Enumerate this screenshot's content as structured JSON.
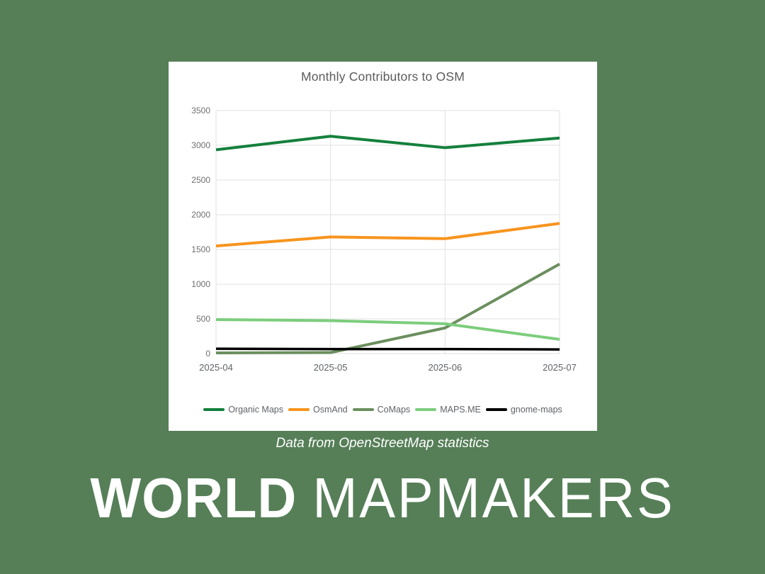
{
  "theme": {
    "background": "#567f58",
    "card_background": "#ffffff",
    "grid_color": "#e2e2e2",
    "axis_text_color": "#6f6f6f",
    "xaxis_text_color": "#5f6368",
    "title_color": "#5b5b5b",
    "caption_color": "#ffffff",
    "wordmark_color": "#ffffff"
  },
  "chart_data": {
    "type": "line",
    "title": "Monthly Contributors to OSM",
    "xlabel": "",
    "ylabel": "",
    "categories": [
      "2025-04",
      "2025-05",
      "2025-06",
      "2025-07"
    ],
    "series": [
      {
        "name": "Organic Maps",
        "color": "#14803c",
        "width": 4,
        "values": [
          2935,
          3130,
          2965,
          3105
        ]
      },
      {
        "name": "OsmAnd",
        "color": "#f7941e",
        "width": 4,
        "values": [
          1550,
          1680,
          1655,
          1875
        ]
      },
      {
        "name": "CoMaps",
        "color": "#6b8f5e",
        "width": 4,
        "values": [
          10,
          15,
          370,
          1290
        ]
      },
      {
        "name": "MAPS.ME",
        "color": "#7ccd7c",
        "width": 4,
        "values": [
          490,
          475,
          430,
          205
        ]
      },
      {
        "name": "gnome-maps",
        "color": "#000000",
        "width": 3.5,
        "values": [
          70,
          65,
          65,
          60
        ]
      }
    ],
    "ylim": [
      0,
      3500
    ],
    "ytick_step": 500,
    "yticks": [
      "0",
      "500",
      "1000",
      "1500",
      "2000",
      "2500",
      "3000",
      "3500"
    ],
    "grid": true,
    "legend_position": "bottom"
  },
  "caption": "Data from OpenStreetMap statistics",
  "wordmark": {
    "bold": "WORLD",
    "thin": "MAPMAKERS"
  }
}
